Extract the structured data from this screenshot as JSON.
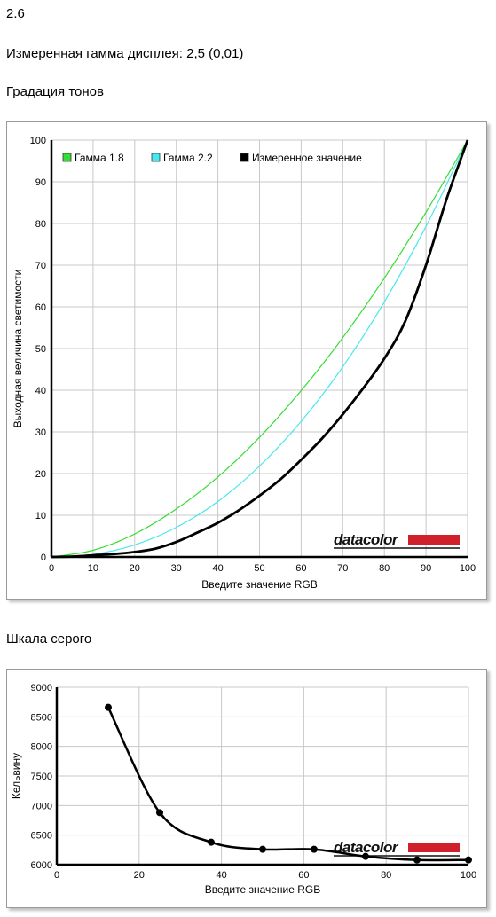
{
  "header": {
    "version": "2.6",
    "gamma_text": "Измеренная гамма дисплея: 2,5 (0,01)"
  },
  "sections": {
    "tone": "Градация тонов",
    "gray": "Шкала серого"
  },
  "brand": {
    "logo_text": "datacolor",
    "logo_color": "#d0202c"
  },
  "chart_data": [
    {
      "type": "line",
      "title": "",
      "xlabel": "Введите значение RGB",
      "ylabel": "Выходная величина светимости",
      "xlim": [
        0,
        100
      ],
      "ylim": [
        0,
        100
      ],
      "xticks": [
        0,
        10,
        20,
        30,
        40,
        50,
        60,
        70,
        80,
        90,
        100
      ],
      "yticks": [
        0,
        10,
        20,
        30,
        40,
        50,
        60,
        70,
        80,
        90,
        100
      ],
      "grid": true,
      "legend_position": "top-left",
      "series": [
        {
          "name": "Гамма 1.8",
          "color": "#33dd33",
          "gamma": 1.8,
          "x": [
            0,
            10,
            20,
            30,
            40,
            50,
            60,
            70,
            80,
            90,
            100
          ],
          "y": [
            0,
            1.6,
            5.5,
            11.5,
            19.2,
            28.7,
            39.9,
            52.6,
            66.9,
            82.7,
            100
          ]
        },
        {
          "name": "Гамма 2.2",
          "color": "#44e8ee",
          "gamma": 2.2,
          "x": [
            0,
            10,
            20,
            30,
            40,
            50,
            60,
            70,
            80,
            90,
            100
          ],
          "y": [
            0,
            0.6,
            2.9,
            7.1,
            13.3,
            21.8,
            32.5,
            45.6,
            61.2,
            79.3,
            100
          ]
        },
        {
          "name": "Измеренное значение",
          "color": "#000000",
          "x": [
            0,
            5,
            10,
            15,
            20,
            25,
            30,
            35,
            40,
            45,
            50,
            55,
            60,
            65,
            70,
            75,
            80,
            85,
            90,
            95,
            100
          ],
          "y": [
            0,
            0.1,
            0.4,
            0.7,
            1.2,
            2.0,
            3.6,
            5.8,
            8.2,
            11.2,
            14.7,
            18.6,
            23.3,
            28.4,
            34.2,
            40.6,
            47.6,
            56.5,
            70.0,
            86.0,
            100
          ]
        }
      ]
    },
    {
      "type": "line",
      "title": "",
      "xlabel": "Введите значение RGB",
      "ylabel": "Кельвину",
      "xlim": [
        0,
        100
      ],
      "ylim": [
        6000,
        9000
      ],
      "xticks": [
        0,
        20,
        40,
        60,
        80,
        100
      ],
      "yticks": [
        6000,
        6500,
        7000,
        7500,
        8000,
        8500,
        9000
      ],
      "grid": true,
      "series": [
        {
          "color": "#000000",
          "x": [
            12.5,
            25,
            37.5,
            50,
            62.5,
            75,
            87.5,
            100
          ],
          "y": [
            8660,
            6880,
            6380,
            6260,
            6260,
            6140,
            6080,
            6080
          ]
        }
      ]
    }
  ]
}
